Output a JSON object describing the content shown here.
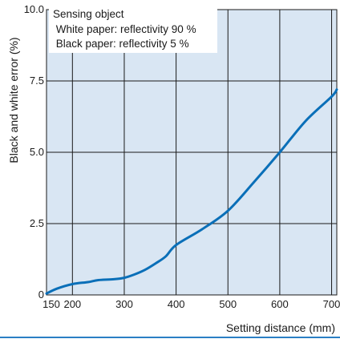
{
  "chart_data": {
    "type": "line",
    "xlabel": "Setting distance (mm)",
    "ylabel": "Black and white error (%)",
    "xlim": [
      150,
      710
    ],
    "ylim": [
      0,
      10
    ],
    "x_ticks": [
      150,
      200,
      300,
      400,
      500,
      600,
      700
    ],
    "y_ticks": [
      0,
      2.5,
      5.0,
      7.5,
      10.0
    ],
    "x_tick_labels": [
      "150",
      "200",
      "300",
      "400",
      "500",
      "600",
      "700"
    ],
    "y_tick_labels": [
      "0",
      "2.5",
      "5.0",
      "7.5",
      "10.0"
    ],
    "annotation": {
      "lines": [
        "Sensing object",
        " White paper: reflectivity 90 %",
        " Black paper: reflectivity 5 %"
      ]
    },
    "grid": true,
    "series": [
      {
        "x": [
          150,
          170,
          200,
          230,
          250,
          280,
          300,
          320,
          340,
          360,
          380,
          400,
          450,
          500,
          550,
          600,
          650,
          700,
          710
        ],
        "values": [
          0.05,
          0.22,
          0.38,
          0.45,
          0.52,
          0.55,
          0.6,
          0.72,
          0.88,
          1.1,
          1.35,
          1.75,
          2.3,
          2.95,
          3.95,
          5.0,
          6.1,
          6.95,
          7.2
        ]
      }
    ]
  },
  "colors": {
    "plot_background": "#d9e6f3",
    "grid": "#1a1a1a",
    "line": "#0a6fb8",
    "bottom_rule": "#2a7fc4"
  }
}
